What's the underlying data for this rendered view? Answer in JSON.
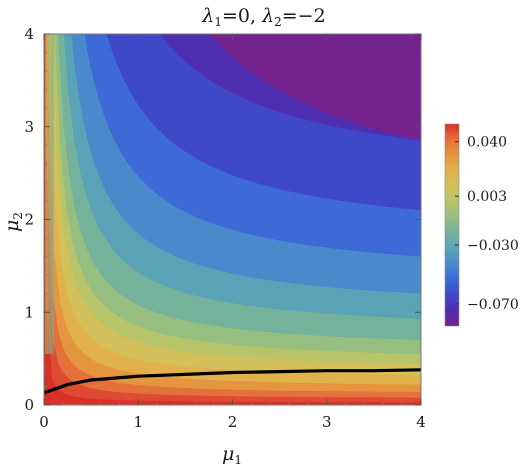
{
  "chart_data": {
    "type": "contour",
    "title": "λ₁=0, λ₂=−2",
    "title_parts": {
      "l1": "λ",
      "l1_sub": "1",
      "l1_val": "=0, ",
      "l2": "λ",
      "l2_sub": "2",
      "l2_val": "=−2"
    },
    "xlabel": "μ",
    "xlabel_sub": "1",
    "ylabel": "μ",
    "ylabel_sub": "2",
    "xlim": [
      0,
      4
    ],
    "ylim": [
      0,
      4
    ],
    "xticks": [
      "0",
      "1",
      "2",
      "3",
      "4"
    ],
    "yticks": [
      "0",
      "1",
      "2",
      "3",
      "4"
    ],
    "colorbar": {
      "ticks": [
        "0.040",
        "0.003",
        "−0.030",
        "−0.070"
      ],
      "range": [
        -0.085,
        0.052
      ],
      "tick_values": [
        0.04,
        0.003,
        -0.03,
        -0.07
      ],
      "position": "right"
    },
    "contour_levels": [
      {
        "boundary_y_at_x4": 2.85,
        "color": "#4f2fb0",
        "region": "-0.085 to -0.075"
      },
      {
        "boundary_y_at_x4": 2.1,
        "color": "#3f48c8",
        "region": "-0.075 to -0.065"
      },
      {
        "boundary_y_at_x4": 1.6,
        "color": "#3d6ad6",
        "region": "-0.065 to -0.055"
      },
      {
        "boundary_y_at_x4": 1.2,
        "color": "#4a8acc",
        "region": "-0.055 to -0.045"
      },
      {
        "boundary_y_at_x4": 0.93,
        "color": "#5aa3b6",
        "region": "-0.045 to -0.035"
      },
      {
        "boundary_y_at_x4": 0.7,
        "color": "#74b29c",
        "region": "-0.035 to -0.025"
      },
      {
        "boundary_y_at_x4": 0.55,
        "color": "#96be80",
        "region": "-0.025 to -0.015"
      },
      {
        "boundary_y_at_x4": 0.44,
        "color": "#b8c468",
        "region": "-0.015 to -0.005"
      },
      {
        "boundary_y_at_x4": 0.32,
        "color": "#d3c05a",
        "region": "-0.005 to 0.005"
      },
      {
        "boundary_y_at_x4": 0.22,
        "color": "#e1b24c",
        "region": "0.005 to 0.015"
      },
      {
        "boundary_y_at_x4": 0.14,
        "color": "#e5953f",
        "region": "0.015 to 0.025"
      },
      {
        "boundary_y_at_x4": 0.08,
        "color": "#e4703a",
        "region": "0.025 to 0.035"
      },
      {
        "boundary_y_at_x4": 0.03,
        "color": "#de4a32",
        "region": "0.035 to 0.045"
      }
    ],
    "top_region_color": "#74238f",
    "zero_contour": {
      "x": [
        0,
        0.25,
        0.5,
        1,
        1.5,
        2,
        2.5,
        3,
        3.5,
        4
      ],
      "y": [
        0.13,
        0.22,
        0.27,
        0.31,
        0.33,
        0.35,
        0.36,
        0.37,
        0.37,
        0.38
      ]
    }
  }
}
